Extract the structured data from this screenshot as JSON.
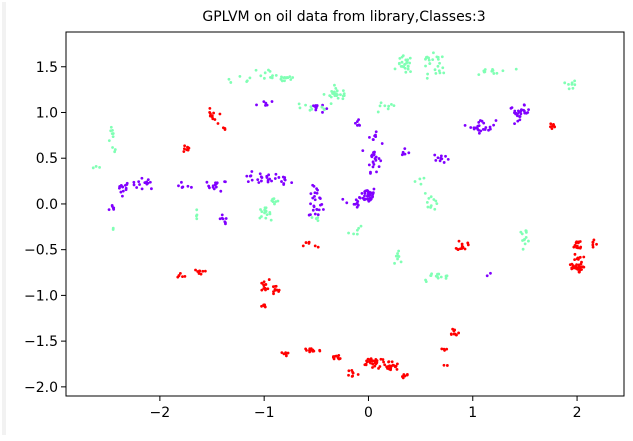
{
  "chart_data": {
    "type": "scatter",
    "title": "GPLVM on oil data from library,Classes:3",
    "xlabel": "",
    "ylabel": "",
    "xlim": [
      -2.9,
      2.45
    ],
    "ylim": [
      -2.1,
      1.88
    ],
    "xticks": [
      -2,
      -1,
      0,
      1,
      2
    ],
    "xtick_labels": [
      "−2",
      "−1",
      "0",
      "1",
      "2"
    ],
    "yticks": [
      -2.0,
      -1.5,
      -1.0,
      -0.5,
      0.0,
      0.5,
      1.0,
      1.5
    ],
    "ytick_labels": [
      "−2.0",
      "−1.5",
      "−1.0",
      "−0.5",
      "0.0",
      "0.5",
      "1.0",
      "1.5"
    ],
    "grid": false,
    "legend": "none",
    "series": [
      {
        "color": "#8000ff",
        "clusters": [
          [
            -2.45,
            -0.05,
            0.03,
            0.04,
            6
          ],
          [
            -2.35,
            0.18,
            0.05,
            0.06,
            14
          ],
          [
            -2.15,
            0.22,
            0.1,
            0.05,
            14
          ],
          [
            -1.75,
            0.2,
            0.06,
            0.04,
            6
          ],
          [
            -1.45,
            0.2,
            0.08,
            0.05,
            14
          ],
          [
            -1.05,
            0.28,
            0.18,
            0.05,
            22
          ],
          [
            -0.8,
            0.25,
            0.05,
            0.05,
            8
          ],
          [
            -1.4,
            -0.2,
            0.04,
            0.08,
            8
          ],
          [
            -0.5,
            0.1,
            0.05,
            0.08,
            12
          ],
          [
            -0.5,
            -0.05,
            0.06,
            0.08,
            14
          ],
          [
            -0.15,
            0.0,
            0.07,
            0.08,
            10
          ],
          [
            0.0,
            0.1,
            0.06,
            0.07,
            40
          ],
          [
            0.05,
            0.5,
            0.05,
            0.12,
            22
          ],
          [
            0.05,
            0.72,
            0.05,
            0.05,
            8
          ],
          [
            0.35,
            0.55,
            0.05,
            0.04,
            6
          ],
          [
            0.7,
            0.5,
            0.06,
            0.05,
            10
          ],
          [
            -1.0,
            1.1,
            0.06,
            0.04,
            6
          ],
          [
            -0.5,
            1.05,
            0.06,
            0.05,
            10
          ],
          [
            -0.1,
            0.88,
            0.05,
            0.04,
            6
          ],
          [
            1.1,
            0.85,
            0.1,
            0.06,
            24
          ],
          [
            1.45,
            1.0,
            0.08,
            0.06,
            28
          ],
          [
            1.15,
            -0.76,
            0.02,
            0.02,
            2
          ]
        ]
      },
      {
        "color": "#80ffb4",
        "clusters": [
          [
            -2.45,
            0.7,
            0.04,
            0.12,
            10
          ],
          [
            -2.6,
            0.4,
            0.04,
            0.03,
            3
          ],
          [
            -2.45,
            -0.28,
            0.02,
            0.02,
            2
          ],
          [
            -1.65,
            -0.12,
            0.02,
            0.04,
            4
          ],
          [
            -1.0,
            -0.1,
            0.05,
            0.05,
            14
          ],
          [
            -0.9,
            0.0,
            0.08,
            0.06,
            8
          ],
          [
            -1.1,
            1.4,
            0.25,
            0.1,
            14
          ],
          [
            -0.8,
            1.38,
            0.1,
            0.05,
            14
          ],
          [
            -0.3,
            1.2,
            0.1,
            0.05,
            24
          ],
          [
            -0.55,
            1.05,
            0.2,
            0.05,
            10
          ],
          [
            0.15,
            1.05,
            0.1,
            0.05,
            8
          ],
          [
            0.35,
            1.52,
            0.06,
            0.08,
            24
          ],
          [
            0.6,
            1.55,
            0.12,
            0.07,
            16
          ],
          [
            0.7,
            1.45,
            0.1,
            0.05,
            8
          ],
          [
            1.2,
            1.45,
            0.15,
            0.06,
            12
          ],
          [
            1.95,
            1.3,
            0.04,
            0.04,
            8
          ],
          [
            0.6,
            0.05,
            0.06,
            0.1,
            12
          ],
          [
            0.5,
            0.25,
            0.04,
            0.04,
            4
          ],
          [
            -0.1,
            -0.3,
            0.08,
            0.04,
            6
          ],
          [
            0.3,
            -0.55,
            0.05,
            0.08,
            8
          ],
          [
            0.65,
            -0.8,
            0.12,
            0.04,
            14
          ],
          [
            1.5,
            -0.35,
            0.05,
            0.06,
            12
          ],
          [
            -0.5,
            -0.15,
            0.03,
            0.03,
            4
          ]
        ]
      },
      {
        "color": "#ff0000",
        "clusters": [
          [
            -1.5,
            0.95,
            0.04,
            0.07,
            12
          ],
          [
            -1.4,
            0.82,
            0.03,
            0.02,
            3
          ],
          [
            -1.75,
            0.6,
            0.04,
            0.04,
            8
          ],
          [
            -1.8,
            -0.78,
            0.04,
            0.02,
            6
          ],
          [
            -1.62,
            -0.74,
            0.04,
            0.02,
            8
          ],
          [
            -1.0,
            -0.9,
            0.04,
            0.06,
            12
          ],
          [
            -0.9,
            -0.95,
            0.05,
            0.05,
            10
          ],
          [
            -1.0,
            -1.12,
            0.02,
            0.03,
            6
          ],
          [
            -0.55,
            -0.45,
            0.06,
            0.04,
            6
          ],
          [
            -0.8,
            -1.64,
            0.03,
            0.02,
            6
          ],
          [
            -0.55,
            -1.6,
            0.08,
            0.03,
            18
          ],
          [
            -0.3,
            -1.68,
            0.06,
            0.03,
            10
          ],
          [
            -0.15,
            -1.85,
            0.04,
            0.04,
            8
          ],
          [
            0.05,
            -1.72,
            0.1,
            0.04,
            30
          ],
          [
            0.2,
            -1.78,
            0.08,
            0.05,
            24
          ],
          [
            0.35,
            -1.88,
            0.04,
            0.03,
            6
          ],
          [
            0.9,
            -0.45,
            0.04,
            0.05,
            14
          ],
          [
            0.75,
            -1.65,
            0.03,
            0.1,
            6
          ],
          [
            0.82,
            -1.4,
            0.04,
            0.04,
            10
          ],
          [
            1.75,
            0.85,
            0.04,
            0.04,
            8
          ],
          [
            2.0,
            -0.45,
            0.05,
            0.06,
            14
          ],
          [
            2.15,
            -0.45,
            0.03,
            0.04,
            6
          ],
          [
            1.98,
            -0.7,
            0.06,
            0.04,
            24
          ],
          [
            2.02,
            -0.62,
            0.04,
            0.06,
            10
          ]
        ]
      }
    ]
  }
}
